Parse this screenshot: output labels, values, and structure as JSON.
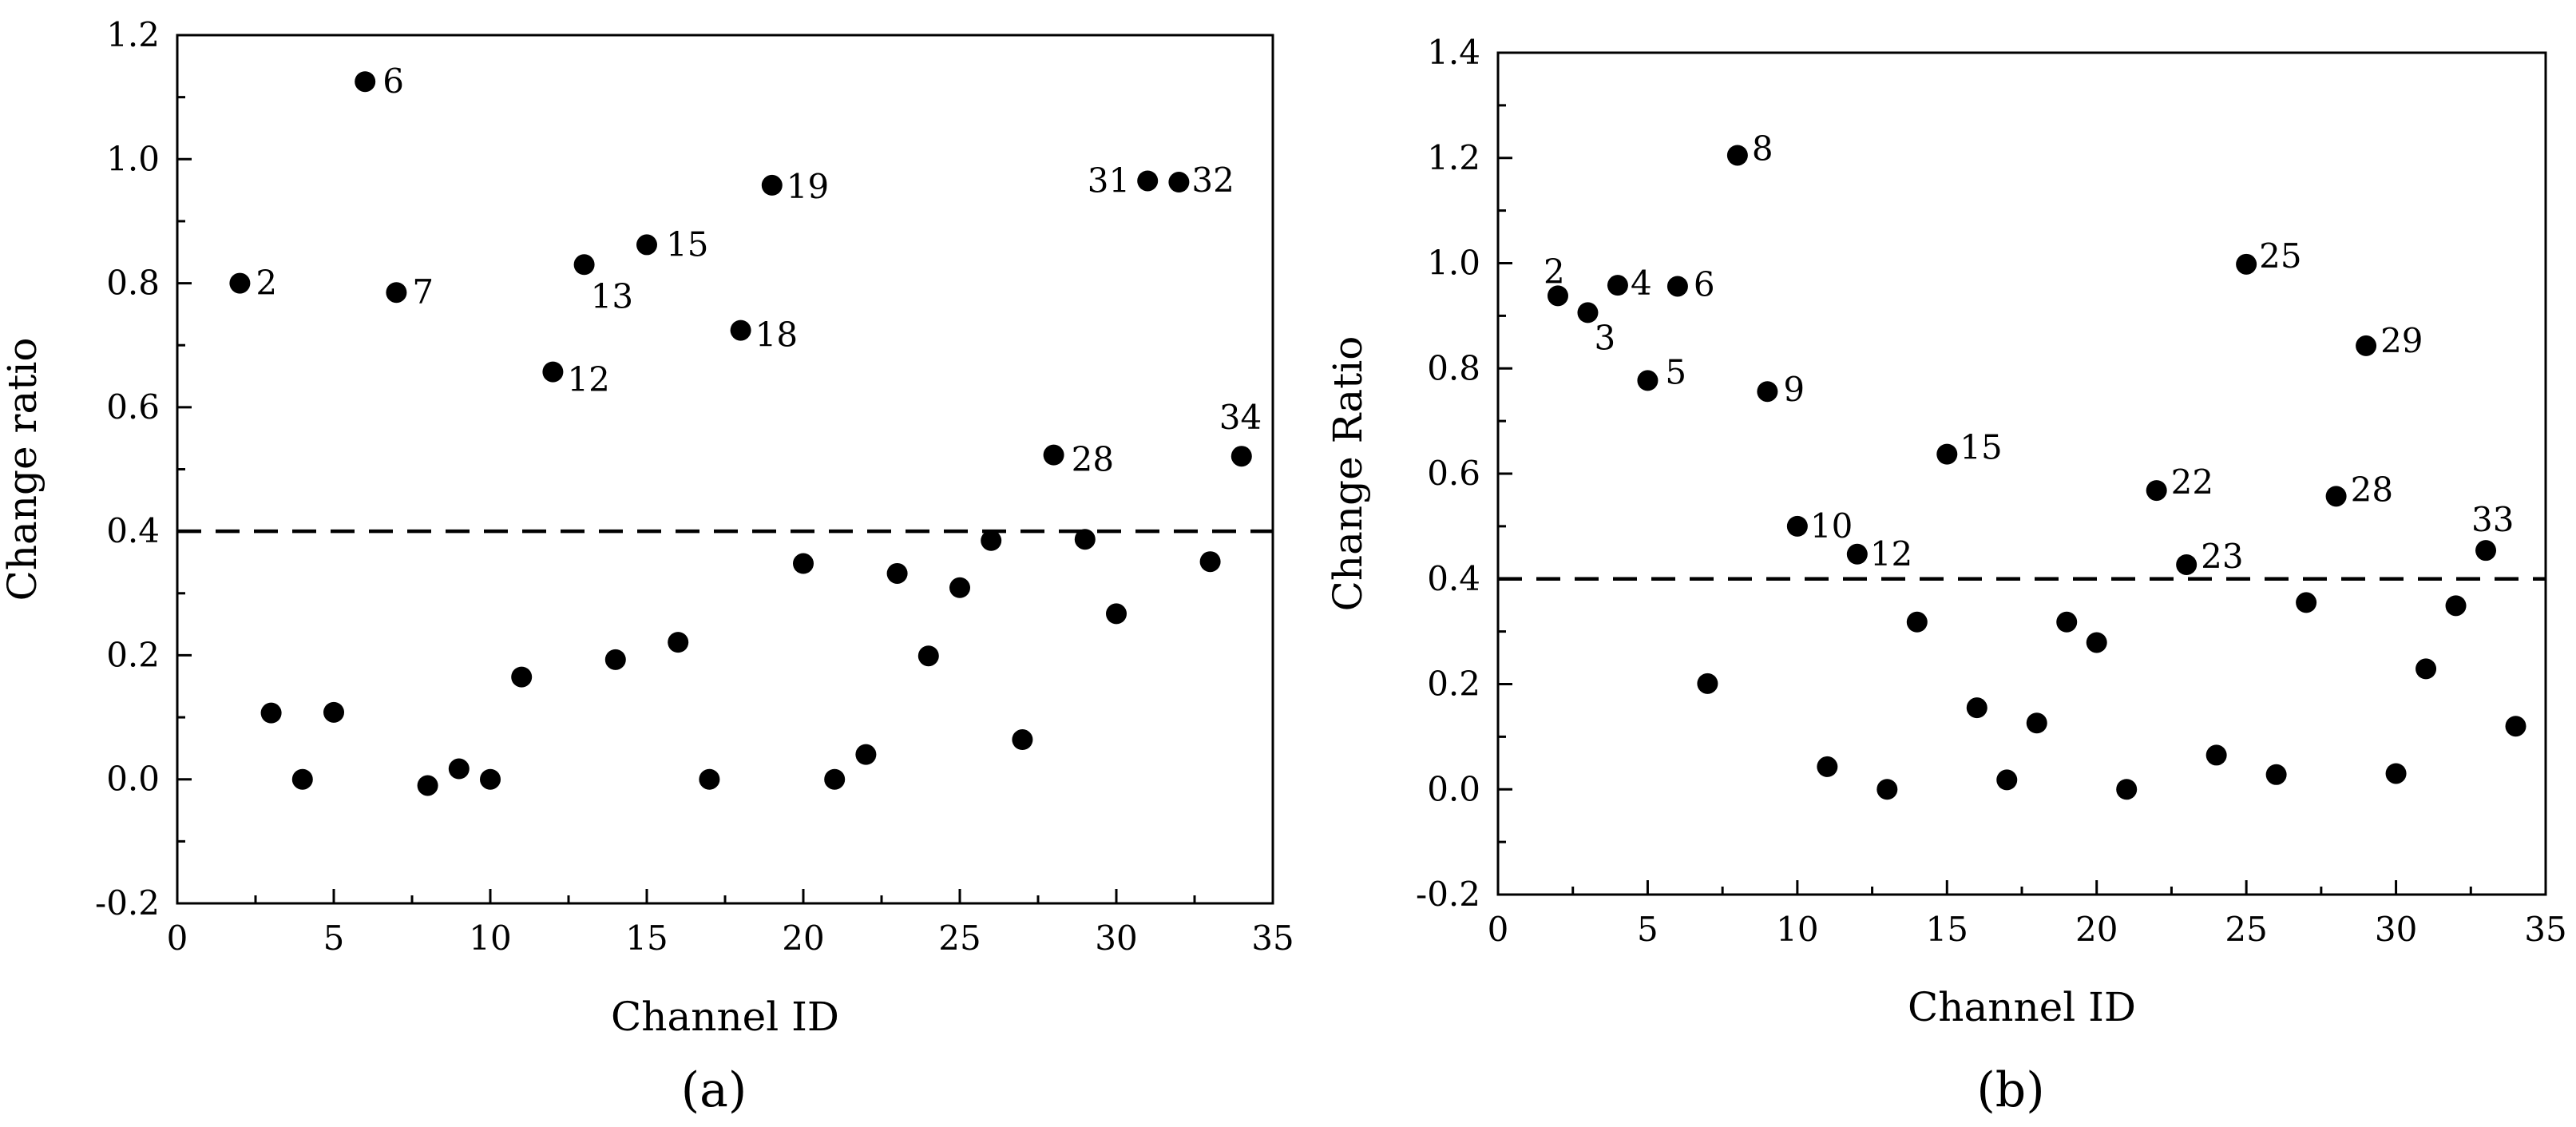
{
  "chart_data": [
    {
      "type": "scatter",
      "panel_label": "(a)",
      "xlabel": "Channel ID",
      "ylabel": "Change ratio",
      "xlim": [
        0,
        35
      ],
      "ylim": [
        -0.2,
        1.2
      ],
      "xticks": [
        "0",
        "5",
        "10",
        "15",
        "20",
        "25",
        "30",
        "35"
      ],
      "yticks": [
        "-0.2",
        "0.0",
        "0.2",
        "0.4",
        "0.6",
        "0.8",
        "1.0",
        "1.2"
      ],
      "threshold": 0.4,
      "points": [
        {
          "x": 2,
          "y": 0.8,
          "label": "2"
        },
        {
          "x": 3,
          "y": 0.107
        },
        {
          "x": 4,
          "y": 0.0
        },
        {
          "x": 5,
          "y": 0.108
        },
        {
          "x": 6,
          "y": 1.125,
          "label": "6"
        },
        {
          "x": 7,
          "y": 0.785,
          "label": "7"
        },
        {
          "x": 8,
          "y": -0.01
        },
        {
          "x": 9,
          "y": 0.017
        },
        {
          "x": 10,
          "y": 0.0
        },
        {
          "x": 11,
          "y": 0.165
        },
        {
          "x": 12,
          "y": 0.657,
          "label": "12"
        },
        {
          "x": 13,
          "y": 0.83,
          "label": "13"
        },
        {
          "x": 14,
          "y": 0.193
        },
        {
          "x": 15,
          "y": 0.862,
          "label": "15"
        },
        {
          "x": 16,
          "y": 0.221
        },
        {
          "x": 17,
          "y": 0.0
        },
        {
          "x": 18,
          "y": 0.724,
          "label": "18"
        },
        {
          "x": 19,
          "y": 0.958,
          "label": "19"
        },
        {
          "x": 20,
          "y": 0.348
        },
        {
          "x": 21,
          "y": 0.0
        },
        {
          "x": 22,
          "y": 0.04
        },
        {
          "x": 23,
          "y": 0.332
        },
        {
          "x": 24,
          "y": 0.199
        },
        {
          "x": 25,
          "y": 0.309
        },
        {
          "x": 26,
          "y": 0.385
        },
        {
          "x": 27,
          "y": 0.064
        },
        {
          "x": 28,
          "y": 0.523,
          "label": "28"
        },
        {
          "x": 29,
          "y": 0.387
        },
        {
          "x": 30,
          "y": 0.267
        },
        {
          "x": 31,
          "y": 0.965,
          "label": "31"
        },
        {
          "x": 32,
          "y": 0.963,
          "label": "32"
        },
        {
          "x": 33,
          "y": 0.351
        },
        {
          "x": 34,
          "y": 0.521,
          "label": "34"
        }
      ]
    },
    {
      "type": "scatter",
      "panel_label": "(b)",
      "xlabel": "Channel ID",
      "ylabel": "Change Ratio",
      "xlim": [
        0,
        35
      ],
      "ylim": [
        -0.2,
        1.4
      ],
      "xticks": [
        "0",
        "5",
        "10",
        "15",
        "20",
        "25",
        "30",
        "35"
      ],
      "yticks": [
        "-0.2",
        "0.0",
        "0.2",
        "0.4",
        "0.6",
        "0.8",
        "1.0",
        "1.2",
        "1.4"
      ],
      "threshold": 0.4,
      "points": [
        {
          "x": 2,
          "y": 0.938,
          "label": "2"
        },
        {
          "x": 3,
          "y": 0.906,
          "label": "3"
        },
        {
          "x": 4,
          "y": 0.958,
          "label": "4"
        },
        {
          "x": 5,
          "y": 0.777,
          "label": "5"
        },
        {
          "x": 6,
          "y": 0.956,
          "label": "6"
        },
        {
          "x": 7,
          "y": 0.201
        },
        {
          "x": 8,
          "y": 1.205,
          "label": "8"
        },
        {
          "x": 9,
          "y": 0.756,
          "label": "9"
        },
        {
          "x": 10,
          "y": 0.5,
          "label": "10"
        },
        {
          "x": 11,
          "y": 0.043
        },
        {
          "x": 12,
          "y": 0.447,
          "label": "12"
        },
        {
          "x": 13,
          "y": 0.0
        },
        {
          "x": 14,
          "y": 0.318
        },
        {
          "x": 15,
          "y": 0.637,
          "label": "15"
        },
        {
          "x": 16,
          "y": 0.155
        },
        {
          "x": 17,
          "y": 0.018
        },
        {
          "x": 18,
          "y": 0.126
        },
        {
          "x": 19,
          "y": 0.318
        },
        {
          "x": 20,
          "y": 0.279
        },
        {
          "x": 21,
          "y": 0.0
        },
        {
          "x": 22,
          "y": 0.568,
          "label": "22"
        },
        {
          "x": 23,
          "y": 0.427,
          "label": "23"
        },
        {
          "x": 24,
          "y": 0.065
        },
        {
          "x": 25,
          "y": 0.998,
          "label": "25"
        },
        {
          "x": 26,
          "y": 0.028
        },
        {
          "x": 27,
          "y": 0.355
        },
        {
          "x": 28,
          "y": 0.557,
          "label": "28"
        },
        {
          "x": 29,
          "y": 0.843,
          "label": "29"
        },
        {
          "x": 30,
          "y": 0.03
        },
        {
          "x": 31,
          "y": 0.229
        },
        {
          "x": 32,
          "y": 0.349
        },
        {
          "x": 33,
          "y": 0.454,
          "label": "33"
        },
        {
          "x": 34,
          "y": 0.12
        }
      ]
    }
  ]
}
